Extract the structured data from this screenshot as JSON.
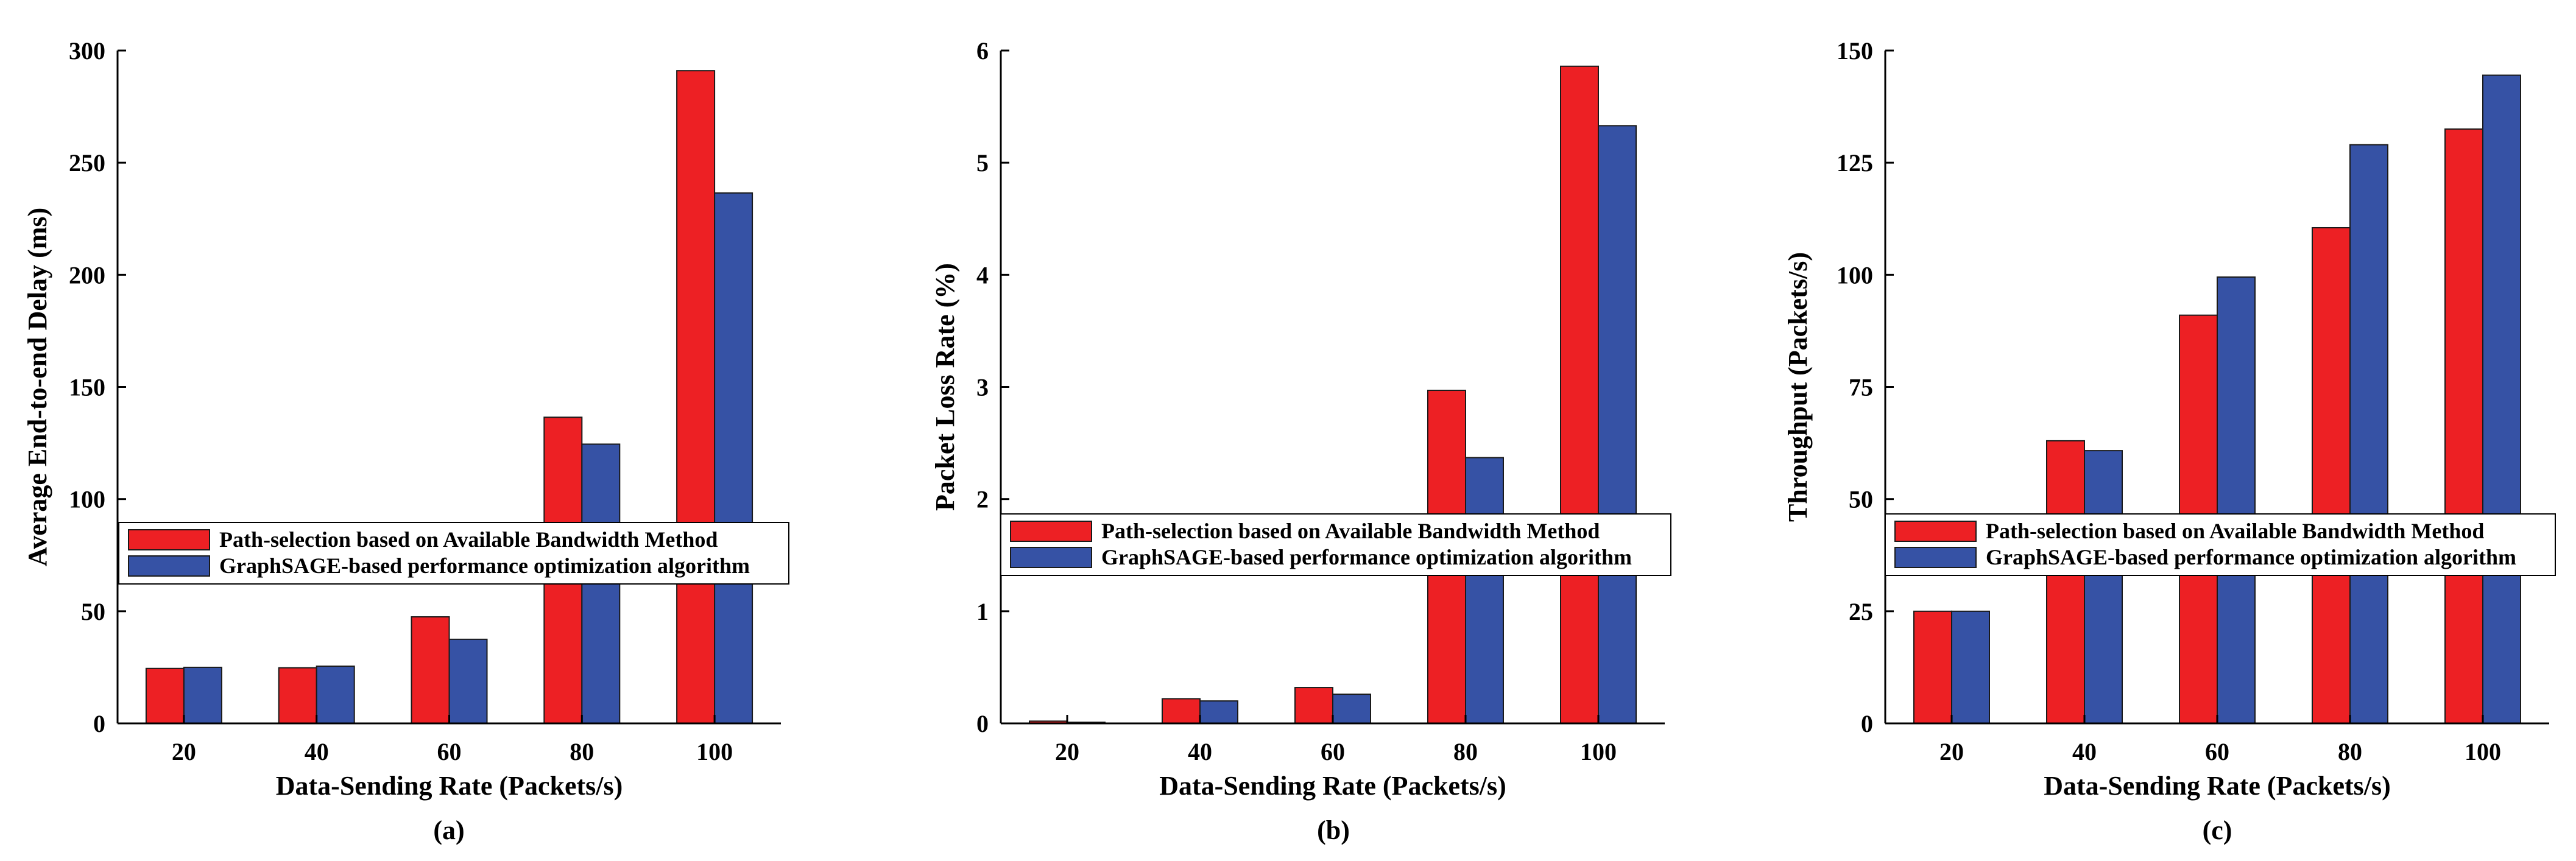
{
  "colors": {
    "series1": "#ed2024",
    "series2": "#3652a5",
    "bar_stroke": "#1a1a1a",
    "axis": "#000000"
  },
  "chart_data": [
    {
      "type": "bar",
      "panel_label": "(a)",
      "title": "",
      "xlabel": "Data-Sending Rate (Packets/s)",
      "ylabel": "Average End-to-end Delay (ms)",
      "categories": [
        "20",
        "40",
        "60",
        "80",
        "100"
      ],
      "ylim": [
        0,
        300
      ],
      "yticks": [
        0,
        50,
        100,
        150,
        200,
        250,
        300
      ],
      "ytick_labels": [
        "0",
        "50",
        "100",
        "150",
        "200",
        "250",
        "300"
      ],
      "legend_position": "center",
      "series": [
        {
          "name": "Path-selection based on Available Bandwidth Method",
          "values": [
            24.5,
            24.8,
            47.5,
            136.5,
            291
          ]
        },
        {
          "name": "GraphSAGE-based performance optimization algorithm",
          "values": [
            25.0,
            25.5,
            37.5,
            124.5,
            236.5
          ]
        }
      ]
    },
    {
      "type": "bar",
      "panel_label": "(b)",
      "title": "",
      "xlabel": "Data-Sending Rate (Packets/s)",
      "ylabel": "Packet Loss Rate (%)",
      "categories": [
        "20",
        "40",
        "60",
        "80",
        "100"
      ],
      "ylim": [
        0,
        6
      ],
      "yticks": [
        0,
        1,
        2,
        3,
        4,
        5,
        6
      ],
      "ytick_labels": [
        "0",
        "1",
        "2",
        "3",
        "4",
        "5",
        "6"
      ],
      "legend_position": "center",
      "series": [
        {
          "name": "Path-selection based on Available Bandwidth Method",
          "values": [
            0.02,
            0.22,
            0.32,
            2.97,
            5.86
          ]
        },
        {
          "name": "GraphSAGE-based performance optimization algorithm",
          "values": [
            0.01,
            0.2,
            0.26,
            2.37,
            5.33
          ]
        }
      ]
    },
    {
      "type": "bar",
      "panel_label": "(c)",
      "title": "",
      "xlabel": "Data-Sending Rate (Packets/s)",
      "ylabel": "Throughput (Packets/s)",
      "categories": [
        "20",
        "40",
        "60",
        "80",
        "100"
      ],
      "ylim": [
        0,
        150
      ],
      "yticks": [
        0,
        25,
        50,
        75,
        100,
        125,
        150
      ],
      "ytick_labels": [
        "0",
        "25",
        "50",
        "75",
        "100",
        "125",
        "150"
      ],
      "legend_position": "center",
      "series": [
        {
          "name": "Path-selection based on Available Bandwidth Method",
          "values": [
            25,
            63,
            91,
            110.5,
            132.5
          ]
        },
        {
          "name": "GraphSAGE-based performance optimization algorithm",
          "values": [
            25,
            60.8,
            99.5,
            129,
            144.5
          ]
        }
      ]
    }
  ]
}
